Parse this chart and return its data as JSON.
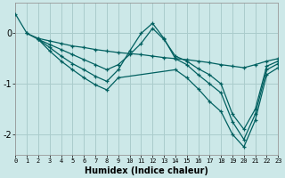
{
  "title": "",
  "xlabel": "Humidex (Indice chaleur)",
  "background_color": "#cce8e8",
  "grid_color": "#aacccc",
  "line_color": "#006060",
  "xlim": [
    0,
    23
  ],
  "ylim": [
    -2.4,
    0.6
  ],
  "yticks": [
    0,
    -1,
    -2
  ],
  "xticks": [
    0,
    1,
    2,
    3,
    4,
    5,
    6,
    7,
    8,
    9,
    10,
    11,
    12,
    13,
    14,
    15,
    16,
    17,
    18,
    19,
    20,
    21,
    22,
    23
  ],
  "lines": [
    {
      "x": [
        0,
        1,
        2,
        3,
        4,
        5,
        6,
        7,
        8,
        9,
        10,
        11,
        12,
        13,
        14,
        15,
        16,
        17,
        18,
        19,
        20,
        21,
        22,
        23
      ],
      "y": [
        0.38,
        0.0,
        -0.1,
        -0.15,
        -0.2,
        -0.25,
        -0.28,
        -0.32,
        -0.35,
        -0.38,
        -0.4,
        -0.42,
        -0.45,
        -0.48,
        -0.5,
        -0.52,
        -0.55,
        -0.58,
        -0.62,
        -0.65,
        -0.68,
        -0.62,
        -0.55,
        -0.5
      ]
    },
    {
      "x": [
        1,
        2,
        3,
        4,
        5,
        6,
        7,
        8,
        9,
        10,
        11,
        12,
        13,
        14,
        15,
        16,
        17,
        18,
        19,
        20,
        21,
        22,
        23
      ],
      "y": [
        0.0,
        -0.12,
        -0.22,
        -0.32,
        -0.42,
        -0.52,
        -0.62,
        -0.72,
        -0.62,
        -0.42,
        -0.2,
        0.1,
        -0.12,
        -0.45,
        -0.55,
        -0.7,
        -0.82,
        -1.0,
        -1.6,
        -1.9,
        -1.5,
        -0.65,
        -0.55
      ]
    },
    {
      "x": [
        2,
        3,
        4,
        5,
        6,
        7,
        8,
        9,
        10,
        11,
        12,
        13,
        14,
        15,
        16,
        17,
        18,
        19,
        20,
        21,
        22,
        23
      ],
      "y": [
        -0.12,
        -0.28,
        -0.45,
        -0.6,
        -0.72,
        -0.85,
        -0.95,
        -0.72,
        -0.35,
        0.0,
        0.2,
        -0.1,
        -0.5,
        -0.62,
        -0.82,
        -1.0,
        -1.18,
        -1.75,
        -2.1,
        -1.6,
        -0.72,
        -0.6
      ]
    },
    {
      "x": [
        2,
        3,
        4,
        5,
        6,
        7,
        8,
        9,
        14,
        15,
        16,
        17,
        18,
        19,
        20,
        21,
        22,
        23
      ],
      "y": [
        -0.12,
        -0.35,
        -0.55,
        -0.72,
        -0.88,
        -1.02,
        -1.12,
        -0.88,
        -0.72,
        -0.88,
        -1.1,
        -1.35,
        -1.55,
        -2.0,
        -2.25,
        -1.72,
        -0.82,
        -0.68
      ]
    }
  ]
}
